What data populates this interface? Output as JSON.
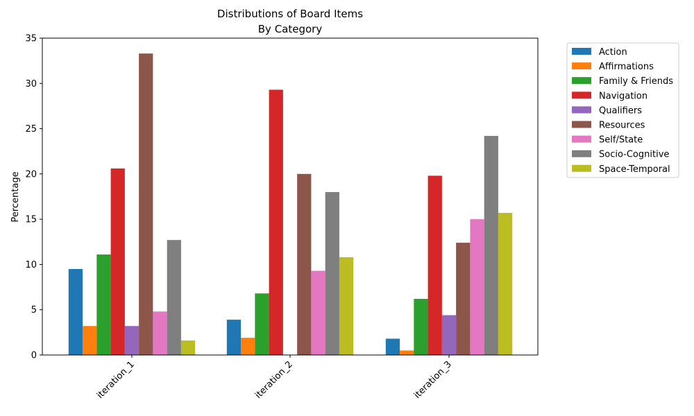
{
  "chart_data": {
    "type": "bar",
    "title_line1": "Distributions of Board Items",
    "title_line2": "By Category",
    "xlabel": "",
    "ylabel": "Percentage",
    "ylim": [
      0,
      35
    ],
    "yticks": [
      0,
      5,
      10,
      15,
      20,
      25,
      30,
      35
    ],
    "grid": false,
    "legend_position": "outside-top-right",
    "categories": [
      "iteration_1",
      "iteration_2",
      "iteration_3"
    ],
    "series": [
      {
        "name": "Action",
        "color": "#1f77b4",
        "values": [
          9.5,
          3.9,
          1.8
        ]
      },
      {
        "name": "Affirmations",
        "color": "#ff7f0e",
        "values": [
          3.2,
          1.9,
          0.5
        ]
      },
      {
        "name": "Family & Friends",
        "color": "#2ca02c",
        "values": [
          11.1,
          6.8,
          6.2
        ]
      },
      {
        "name": "Navigation",
        "color": "#d62728",
        "values": [
          20.6,
          29.3,
          19.8
        ]
      },
      {
        "name": "Qualifiers",
        "color": "#9467bd",
        "values": [
          3.2,
          0,
          4.4
        ]
      },
      {
        "name": "Resources",
        "color": "#8c564b",
        "values": [
          33.3,
          20.0,
          12.4
        ]
      },
      {
        "name": "Self/State",
        "color": "#e377c2",
        "values": [
          4.8,
          9.3,
          15.0
        ]
      },
      {
        "name": "Socio-Cognitive",
        "color": "#7f7f7f",
        "values": [
          12.7,
          18.0,
          24.2
        ]
      },
      {
        "name": "Space-Temporal",
        "color": "#bcbd22",
        "values": [
          1.6,
          10.8,
          15.7
        ]
      }
    ]
  }
}
